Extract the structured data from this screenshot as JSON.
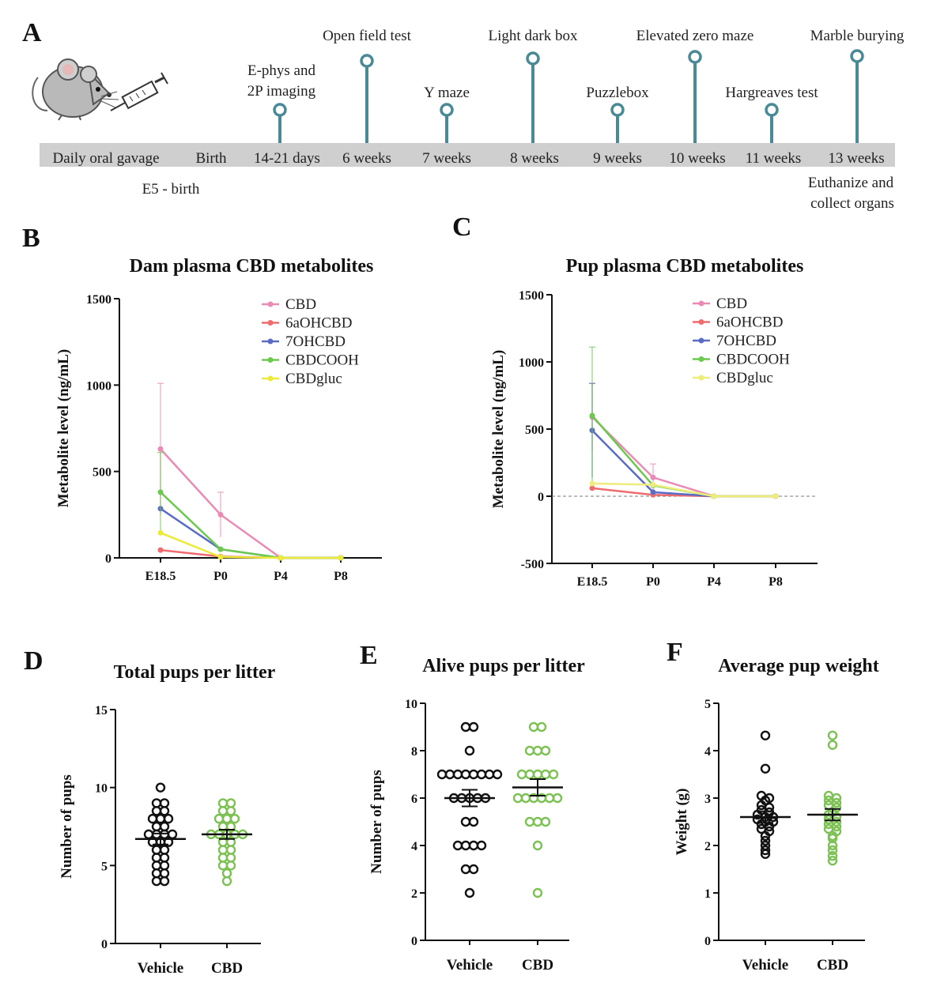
{
  "panels": {
    "A": "A",
    "B": "B",
    "C": "C",
    "D": "D",
    "E": "E",
    "F": "F"
  },
  "timeline": {
    "bar_color": "#cfcfcf",
    "pin_color": "#4a8a96",
    "stages": [
      "Daily oral gavage",
      "Birth",
      "14-21 days",
      "6 weeks",
      "7 weeks",
      "8 weeks",
      "9 weeks",
      "10 weeks",
      "11 weeks",
      "13 weeks"
    ],
    "below": {
      "gavage": "E5 - birth",
      "end_line1": "Euthanize and",
      "end_line2": "collect organs"
    },
    "events": [
      {
        "line1": "E-phys and",
        "line2": "2P imaging"
      },
      {
        "line1": "Open field test"
      },
      {
        "line1": "Y maze"
      },
      {
        "line1": "Light dark box"
      },
      {
        "line1": "Puzzlebox"
      },
      {
        "line1": "Elevated zero maze"
      },
      {
        "line1": "Hargreaves test"
      },
      {
        "line1": "Marble burying"
      }
    ]
  },
  "chart_data": [
    {
      "id": "B",
      "type": "line",
      "title": "Dam plasma CBD metabolites",
      "xlabel": "",
      "ylabel": "Metabolite level (ng/mL)",
      "categories": [
        "E18.5",
        "P0",
        "P4",
        "P8"
      ],
      "ylim": [
        0,
        1500
      ],
      "yticks": [
        0,
        500,
        1000,
        1500
      ],
      "series": [
        {
          "name": "CBD",
          "color": "#e98bb4",
          "values": [
            630,
            250,
            0,
            0
          ],
          "err": [
            380,
            130,
            0,
            0
          ]
        },
        {
          "name": "6aOHCBD",
          "color": "#ee6b6e",
          "values": [
            45,
            8,
            0,
            0
          ],
          "err": [
            0,
            0,
            0,
            0
          ]
        },
        {
          "name": "7OHCBD",
          "color": "#5a6cc4",
          "values": [
            285,
            50,
            0,
            0
          ],
          "err": [
            0,
            0,
            0,
            0
          ]
        },
        {
          "name": "CBDCOOH",
          "color": "#6cc94e",
          "values": [
            380,
            50,
            0,
            0
          ],
          "err": [
            230,
            0,
            0,
            0
          ]
        },
        {
          "name": "CBDgluc",
          "color": "#ecea3a",
          "values": [
            145,
            5,
            0,
            0
          ],
          "err": [
            0,
            0,
            0,
            0
          ]
        }
      ]
    },
    {
      "id": "C",
      "type": "line",
      "title": "Pup plasma CBD metabolites",
      "xlabel": "",
      "ylabel": "Metabolite level (ng/mL)",
      "categories": [
        "E18.5",
        "P0",
        "P4",
        "P8"
      ],
      "ylim": [
        -500,
        1500
      ],
      "yticks": [
        -500,
        0,
        500,
        1000,
        1500
      ],
      "series": [
        {
          "name": "CBD",
          "color": "#e98bb4",
          "values": [
            590,
            140,
            0,
            0
          ],
          "err": [
            250,
            100,
            0,
            0
          ]
        },
        {
          "name": "6aOHCBD",
          "color": "#ee6b6e",
          "values": [
            60,
            10,
            0,
            0
          ],
          "err": [
            0,
            0,
            0,
            0
          ]
        },
        {
          "name": "7OHCBD",
          "color": "#5a6cc4",
          "values": [
            490,
            30,
            0,
            0
          ],
          "err": [
            350,
            0,
            0,
            0
          ]
        },
        {
          "name": "CBDCOOH",
          "color": "#6cc94e",
          "values": [
            600,
            80,
            0,
            0
          ],
          "err": [
            510,
            0,
            0,
            0
          ]
        },
        {
          "name": "CBDgluc",
          "color": "#eeec7a",
          "values": [
            95,
            85,
            0,
            0
          ],
          "err": [
            0,
            0,
            0,
            0
          ]
        }
      ]
    },
    {
      "id": "D",
      "type": "scatter",
      "title": "Total pups per litter",
      "ylabel": "Number of pups",
      "ylim": [
        0,
        15
      ],
      "yticks": [
        0,
        5,
        10,
        15
      ],
      "groups": [
        {
          "name": "Vehicle",
          "color": "#111111",
          "mean": 6.7,
          "sem": 0.35,
          "values": [
            10,
            9,
            9,
            8.5,
            8.5,
            8,
            8,
            8,
            7.5,
            7.5,
            7,
            7,
            7,
            7,
            6.5,
            6.5,
            6.5,
            6,
            6,
            5.5,
            5.5,
            5,
            5,
            4.5,
            4.5,
            4,
            4
          ]
        },
        {
          "name": "CBD",
          "color": "#7cc153",
          "mean": 7.0,
          "sem": 0.3,
          "values": [
            9,
            9,
            8.5,
            8.5,
            8,
            8,
            8,
            7.5,
            7.5,
            7,
            7,
            7,
            7,
            7,
            6.5,
            6.5,
            6,
            6,
            5.5,
            5.5,
            5,
            5,
            4.5,
            4
          ]
        }
      ]
    },
    {
      "id": "E",
      "type": "scatter",
      "title": "Alive pups per litter",
      "ylabel": "Number of pups",
      "ylim": [
        0,
        10
      ],
      "yticks": [
        0,
        2,
        4,
        6,
        8,
        10
      ],
      "groups": [
        {
          "name": "Vehicle",
          "color": "#111111",
          "mean": 6.0,
          "sem": 0.35,
          "values": [
            9,
            9,
            8,
            7,
            7,
            7,
            7,
            7,
            7,
            7,
            7,
            6,
            6,
            6,
            6,
            6,
            5,
            5,
            4,
            4,
            4,
            4,
            3,
            3,
            2
          ]
        },
        {
          "name": "CBD",
          "color": "#7cc153",
          "mean": 6.45,
          "sem": 0.35,
          "values": [
            9,
            9,
            8,
            8,
            8,
            7,
            7,
            7,
            7,
            7,
            6,
            6,
            6,
            6,
            6,
            6,
            5,
            5,
            5,
            4,
            2
          ]
        }
      ]
    },
    {
      "id": "F",
      "type": "scatter",
      "title": "Average pup weight",
      "ylabel": "Weight (g)",
      "ylim": [
        0,
        5
      ],
      "yticks": [
        0,
        1,
        2,
        3,
        4,
        5
      ],
      "groups": [
        {
          "name": "Vehicle",
          "color": "#111111",
          "mean": 2.6,
          "sem": 0.12,
          "values": [
            4.32,
            3.62,
            3.05,
            3.0,
            2.95,
            2.85,
            2.8,
            2.75,
            2.7,
            2.65,
            2.6,
            2.6,
            2.55,
            2.5,
            2.5,
            2.45,
            2.4,
            2.35,
            2.3,
            2.2,
            2.1,
            2.0,
            1.9,
            1.82
          ]
        },
        {
          "name": "CBD",
          "color": "#7cc153",
          "mean": 2.65,
          "sem": 0.12,
          "values": [
            4.32,
            4.12,
            3.05,
            3.0,
            2.95,
            2.9,
            2.85,
            2.8,
            2.7,
            2.65,
            2.6,
            2.55,
            2.5,
            2.45,
            2.4,
            2.35,
            2.3,
            2.2,
            2.15,
            2.0,
            1.9,
            1.78,
            1.68
          ]
        }
      ]
    }
  ]
}
